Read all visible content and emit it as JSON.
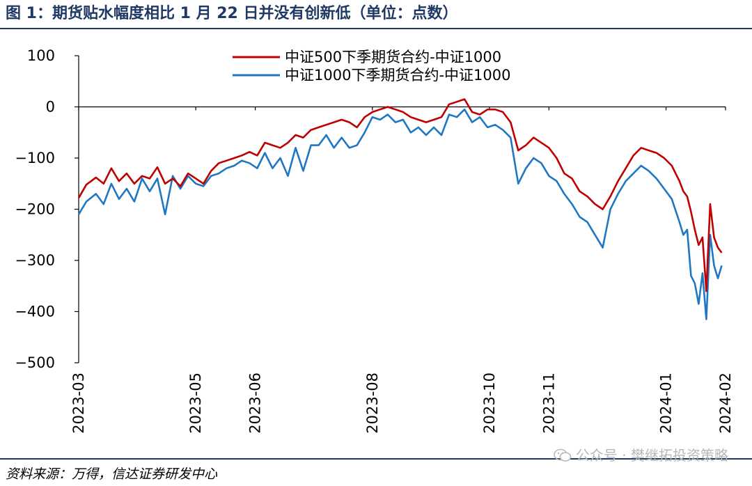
{
  "figure": {
    "title": "图 1：期货贴水幅度相比 1 月 22 日并没有创新低（单位：点数）",
    "source": "资料来源：万得，信达证券研发中心",
    "watermark": "公众号 · 樊继拓投资策略"
  },
  "chart_data": {
    "type": "line",
    "title": "",
    "xlabel": "",
    "ylabel": "",
    "ylim": [
      -500,
      100
    ],
    "yticks": [
      100,
      0,
      -100,
      -200,
      -300,
      -400,
      -500
    ],
    "yticklabels": [
      "100",
      "0",
      "−100",
      "−200",
      "−300",
      "−400",
      "−500"
    ],
    "xlim": [
      "2023-03-01",
      "2024-02-01"
    ],
    "xticks": [
      "2023-03",
      "2023-05",
      "2023-06",
      "2023-08",
      "2023-10",
      "2023-11",
      "2024-01",
      "2024-02"
    ],
    "grid": false,
    "legend": "top-center",
    "series": [
      {
        "name": "中证500下季期货合约-中证1000",
        "color": "#c00000",
        "x": [
          "2023-03-01",
          "2023-03-05",
          "2023-03-10",
          "2023-03-14",
          "2023-03-18",
          "2023-03-22",
          "2023-03-26",
          "2023-03-30",
          "2023-04-03",
          "2023-04-07",
          "2023-04-11",
          "2023-04-15",
          "2023-04-19",
          "2023-04-23",
          "2023-04-27",
          "2023-05-01",
          "2023-05-05",
          "2023-05-09",
          "2023-05-13",
          "2023-05-17",
          "2023-05-21",
          "2023-05-25",
          "2023-05-29",
          "2023-06-02",
          "2023-06-06",
          "2023-06-10",
          "2023-06-14",
          "2023-06-18",
          "2023-06-22",
          "2023-06-26",
          "2023-06-30",
          "2023-07-04",
          "2023-07-08",
          "2023-07-12",
          "2023-07-16",
          "2023-07-20",
          "2023-07-24",
          "2023-07-28",
          "2023-08-01",
          "2023-08-05",
          "2023-08-09",
          "2023-08-13",
          "2023-08-17",
          "2023-08-21",
          "2023-08-25",
          "2023-08-29",
          "2023-09-02",
          "2023-09-06",
          "2023-09-10",
          "2023-09-14",
          "2023-09-18",
          "2023-09-22",
          "2023-09-26",
          "2023-09-30",
          "2023-10-04",
          "2023-10-08",
          "2023-10-12",
          "2023-10-16",
          "2023-10-20",
          "2023-10-24",
          "2023-10-28",
          "2023-11-01",
          "2023-11-05",
          "2023-11-09",
          "2023-11-13",
          "2023-11-17",
          "2023-11-21",
          "2023-11-25",
          "2023-11-29",
          "2023-12-03",
          "2023-12-07",
          "2023-12-11",
          "2023-12-15",
          "2023-12-19",
          "2023-12-23",
          "2023-12-27",
          "2023-12-31",
          "2024-01-04",
          "2024-01-08",
          "2024-01-10",
          "2024-01-12",
          "2024-01-14",
          "2024-01-16",
          "2024-01-18",
          "2024-01-20",
          "2024-01-22",
          "2024-01-24",
          "2024-01-26",
          "2024-01-28",
          "2024-01-30"
        ],
        "y": [
          -178,
          -152,
          -138,
          -150,
          -120,
          -145,
          -130,
          -150,
          -135,
          -140,
          -118,
          -150,
          -140,
          -155,
          -130,
          -140,
          -150,
          -125,
          -110,
          -105,
          -100,
          -95,
          -88,
          -95,
          -70,
          -75,
          -80,
          -70,
          -55,
          -60,
          -45,
          -40,
          -35,
          -30,
          -25,
          -30,
          -40,
          -20,
          -10,
          -5,
          0,
          -5,
          -10,
          -20,
          -25,
          -30,
          -25,
          -20,
          5,
          10,
          15,
          -10,
          -15,
          -5,
          -5,
          -10,
          -30,
          -85,
          -75,
          -60,
          -70,
          -80,
          -100,
          -130,
          -140,
          -165,
          -175,
          -190,
          -200,
          -175,
          -145,
          -120,
          -95,
          -80,
          -85,
          -90,
          -100,
          -115,
          -145,
          -165,
          -175,
          -205,
          -240,
          -270,
          -255,
          -360,
          -190,
          -255,
          -275,
          -285
        ]
      },
      {
        "name": "中证1000下季期货合约-中证1000",
        "color": "#1f77c4",
        "x": [
          "2023-03-01",
          "2023-03-05",
          "2023-03-10",
          "2023-03-14",
          "2023-03-18",
          "2023-03-22",
          "2023-03-26",
          "2023-03-30",
          "2023-04-03",
          "2023-04-07",
          "2023-04-11",
          "2023-04-15",
          "2023-04-19",
          "2023-04-23",
          "2023-04-27",
          "2023-05-01",
          "2023-05-05",
          "2023-05-09",
          "2023-05-13",
          "2023-05-17",
          "2023-05-21",
          "2023-05-25",
          "2023-05-29",
          "2023-06-02",
          "2023-06-06",
          "2023-06-10",
          "2023-06-14",
          "2023-06-18",
          "2023-06-22",
          "2023-06-26",
          "2023-06-30",
          "2023-07-04",
          "2023-07-08",
          "2023-07-12",
          "2023-07-16",
          "2023-07-20",
          "2023-07-24",
          "2023-07-28",
          "2023-08-01",
          "2023-08-05",
          "2023-08-09",
          "2023-08-13",
          "2023-08-17",
          "2023-08-21",
          "2023-08-25",
          "2023-08-29",
          "2023-09-02",
          "2023-09-06",
          "2023-09-10",
          "2023-09-14",
          "2023-09-18",
          "2023-09-22",
          "2023-09-26",
          "2023-09-30",
          "2023-10-04",
          "2023-10-08",
          "2023-10-12",
          "2023-10-16",
          "2023-10-20",
          "2023-10-24",
          "2023-10-28",
          "2023-11-01",
          "2023-11-05",
          "2023-11-09",
          "2023-11-13",
          "2023-11-17",
          "2023-11-21",
          "2023-11-25",
          "2023-11-29",
          "2023-12-03",
          "2023-12-07",
          "2023-12-11",
          "2023-12-15",
          "2023-12-19",
          "2023-12-23",
          "2023-12-27",
          "2023-12-31",
          "2024-01-04",
          "2024-01-08",
          "2024-01-10",
          "2024-01-12",
          "2024-01-14",
          "2024-01-16",
          "2024-01-18",
          "2024-01-20",
          "2024-01-22",
          "2024-01-24",
          "2024-01-26",
          "2024-01-28",
          "2024-01-30"
        ],
        "y": [
          -210,
          -185,
          -170,
          -190,
          -150,
          -180,
          -160,
          -185,
          -140,
          -165,
          -140,
          -210,
          -135,
          -160,
          -135,
          -150,
          -155,
          -135,
          -130,
          -120,
          -115,
          -105,
          -110,
          -120,
          -90,
          -120,
          -100,
          -135,
          -80,
          -125,
          -75,
          -75,
          -55,
          -80,
          -60,
          -80,
          -75,
          -50,
          -20,
          -25,
          -15,
          -30,
          -25,
          -50,
          -40,
          -55,
          -40,
          -55,
          -15,
          -20,
          -5,
          -30,
          -20,
          -40,
          -35,
          -45,
          -60,
          -150,
          -120,
          -100,
          -110,
          -135,
          -145,
          -170,
          -190,
          -215,
          -225,
          -250,
          -275,
          -200,
          -170,
          -145,
          -130,
          -115,
          -125,
          -140,
          -160,
          -180,
          -225,
          -250,
          -240,
          -330,
          -345,
          -385,
          -325,
          -415,
          -250,
          -310,
          -335,
          -310
        ]
      }
    ]
  }
}
